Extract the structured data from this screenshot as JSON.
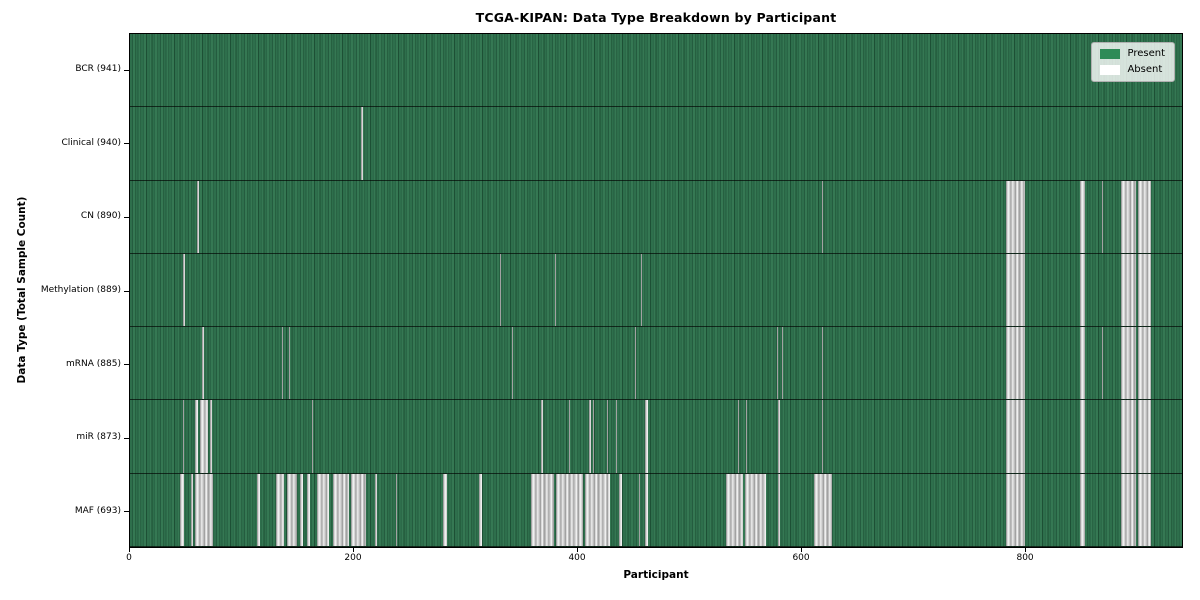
{
  "chart_data": {
    "type": "heatmap",
    "title": "TCGA-KIPAN: Data Type Breakdown by Participant",
    "xlabel": "Participant",
    "ylabel": "Data Type (Total Sample Count)",
    "x_ticks": [
      0,
      200,
      400,
      600,
      800
    ],
    "x_range": [
      0,
      941
    ],
    "n_participants": 941,
    "grid": false,
    "legend_position": "upper right",
    "legend": [
      {
        "label": "Present",
        "color": "#2e8b57"
      },
      {
        "label": "Absent",
        "color": "#ffffff"
      }
    ],
    "cell_states": {
      "present": "green",
      "absent": "white"
    },
    "rows": [
      {
        "data_type": "BCR",
        "label": "BCR (941)",
        "total_samples": 941,
        "absent_ranges": []
      },
      {
        "data_type": "Clinical",
        "label": "Clinical (940)",
        "total_samples": 940,
        "absent_ranges": [
          [
            207,
            208
          ]
        ]
      },
      {
        "data_type": "CN",
        "label": "CN (890)",
        "total_samples": 890,
        "absent_ranges": [
          [
            60,
            62
          ],
          [
            619,
            620
          ],
          [
            784,
            801
          ],
          [
            850,
            854
          ],
          [
            869,
            870
          ],
          [
            886,
            900
          ],
          [
            902,
            913
          ]
        ]
      },
      {
        "data_type": "Methylation",
        "label": "Methylation (889)",
        "total_samples": 889,
        "absent_ranges": [
          [
            47,
            49
          ],
          [
            331,
            332
          ],
          [
            380,
            381
          ],
          [
            457,
            458
          ],
          [
            784,
            801
          ],
          [
            850,
            854
          ],
          [
            886,
            900
          ],
          [
            902,
            913
          ]
        ]
      },
      {
        "data_type": "mRNA",
        "label": "mRNA (885)",
        "total_samples": 885,
        "absent_ranges": [
          [
            64,
            66
          ],
          [
            136,
            137
          ],
          [
            142,
            143
          ],
          [
            342,
            343
          ],
          [
            452,
            453
          ],
          [
            579,
            580
          ],
          [
            583,
            584
          ],
          [
            619,
            620
          ],
          [
            784,
            801
          ],
          [
            850,
            854
          ],
          [
            869,
            870
          ],
          [
            886,
            900
          ],
          [
            902,
            913
          ]
        ]
      },
      {
        "data_type": "miR",
        "label": "miR (873)",
        "total_samples": 873,
        "absent_ranges": [
          [
            47,
            48
          ],
          [
            58,
            61
          ],
          [
            63,
            70
          ],
          [
            72,
            73
          ],
          [
            163,
            164
          ],
          [
            368,
            369
          ],
          [
            393,
            394
          ],
          [
            411,
            412
          ],
          [
            414,
            415
          ],
          [
            427,
            428
          ],
          [
            435,
            436
          ],
          [
            461,
            463
          ],
          [
            544,
            545
          ],
          [
            551,
            552
          ],
          [
            580,
            581
          ],
          [
            619,
            620
          ],
          [
            784,
            801
          ],
          [
            850,
            854
          ],
          [
            886,
            900
          ],
          [
            902,
            913
          ]
        ]
      },
      {
        "data_type": "MAF",
        "label": "MAF (693)",
        "total_samples": 693,
        "absent_ranges": [
          [
            45,
            48
          ],
          [
            55,
            56
          ],
          [
            58,
            74
          ],
          [
            114,
            116
          ],
          [
            131,
            138
          ],
          [
            140,
            149
          ],
          [
            152,
            155
          ],
          [
            158,
            161
          ],
          [
            167,
            178
          ],
          [
            182,
            196
          ],
          [
            198,
            211
          ],
          [
            219,
            221
          ],
          [
            238,
            239
          ],
          [
            280,
            284
          ],
          [
            312,
            315
          ],
          [
            359,
            379
          ],
          [
            381,
            405
          ],
          [
            407,
            429
          ],
          [
            437,
            440
          ],
          [
            455,
            456
          ],
          [
            461,
            463
          ],
          [
            533,
            548
          ],
          [
            550,
            569
          ],
          [
            580,
            581
          ],
          [
            612,
            628
          ],
          [
            784,
            801
          ],
          [
            850,
            854
          ],
          [
            886,
            900
          ],
          [
            902,
            913
          ]
        ]
      }
    ],
    "colors": {
      "present_base": "#2e8b57",
      "present_dark_stripe": "#1d5035",
      "absent_gray": "#bdbdbd",
      "absent_white": "#efefef",
      "row_separator": "#000000"
    }
  }
}
